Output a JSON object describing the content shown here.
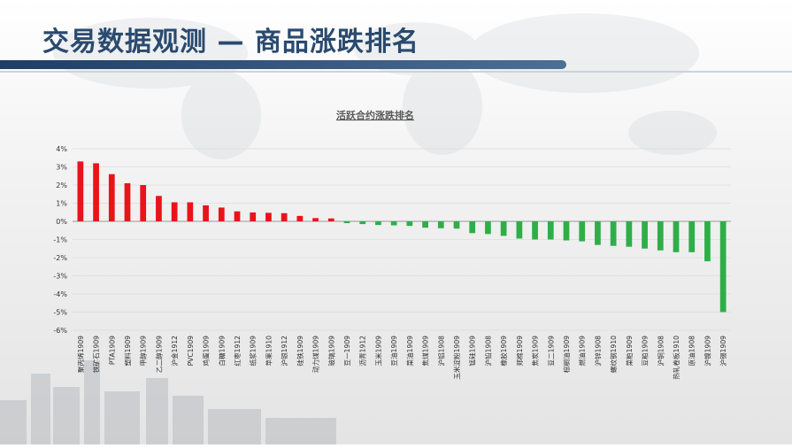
{
  "slide": {
    "title": "交易数据观测 — 商品涨跌排名"
  },
  "chart_data": {
    "type": "bar",
    "title": "活跃合约涨跌排名",
    "xlabel": "",
    "ylabel": "",
    "ylim": [
      -6,
      4
    ],
    "yticks": [
      4,
      3,
      2,
      1,
      0,
      -1,
      -2,
      -3,
      -4,
      -5,
      -6
    ],
    "ytick_format": "%",
    "grid": true,
    "positive_color": "#e8141b",
    "negative_color": "#2fae48",
    "categories": [
      "聚丙烯1909",
      "铁矿石1909",
      "PTA1909",
      "塑料1909",
      "甲醇1909",
      "乙二醇1909",
      "沪金1912",
      "PVC1909",
      "鸡蛋1909",
      "白糖1909",
      "红枣1912",
      "纸浆1909",
      "苹果1910",
      "沪银1912",
      "硅铁1909",
      "动力煤1909",
      "玻璃1909",
      "豆一1909",
      "沥青1912",
      "玉米1909",
      "豆油1909",
      "菜油1909",
      "焦煤1909",
      "沪铝1908",
      "玉米淀粉1909",
      "锰硅1909",
      "沪铅1908",
      "橡胶1909",
      "郑棉1909",
      "焦炭1909",
      "豆二1909",
      "棕榈油1909",
      "燃油1909",
      "沪锌1908",
      "螺纹钢1910",
      "菜粕1909",
      "豆粕1909",
      "沪铜1908",
      "热轧卷板1910",
      "原油1908",
      "沪镍1909",
      "沪锡1909"
    ],
    "values": [
      3.3,
      3.2,
      2.6,
      2.1,
      2.0,
      1.4,
      1.05,
      1.05,
      0.88,
      0.76,
      0.55,
      0.49,
      0.47,
      0.45,
      0.3,
      0.18,
      0.16,
      -0.1,
      -0.15,
      -0.2,
      -0.22,
      -0.25,
      -0.35,
      -0.38,
      -0.4,
      -0.65,
      -0.7,
      -0.8,
      -0.95,
      -1.0,
      -1.0,
      -1.05,
      -1.1,
      -1.3,
      -1.35,
      -1.4,
      -1.5,
      -1.6,
      -1.7,
      -1.7,
      -2.2,
      -5.0
    ]
  }
}
